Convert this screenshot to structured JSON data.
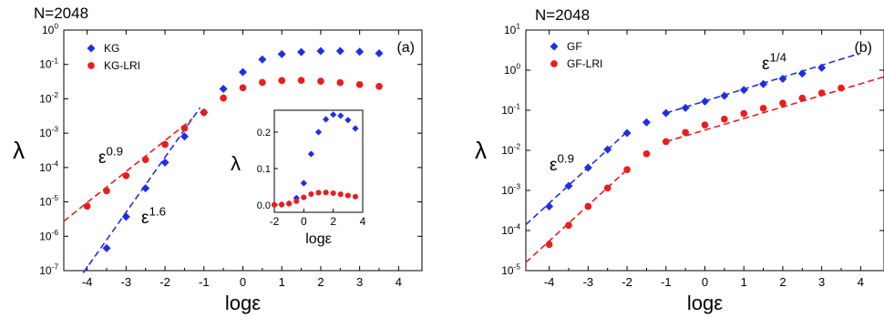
{
  "chart_data": [
    {
      "type": "scatter",
      "panel_label": "(a)",
      "header": "N=2048",
      "xlabel": "logε",
      "ylabel": "λ",
      "y_scale": "log",
      "xlim": [
        -4.6,
        4.6
      ],
      "ylim": [
        1e-07,
        1
      ],
      "x_ticks": [
        -4,
        -3,
        -2,
        -1,
        0,
        1,
        2,
        3,
        4
      ],
      "y_ticks": [
        {
          "v": 1e-07,
          "base": "10",
          "exp": "-7"
        },
        {
          "v": 1e-06,
          "base": "10",
          "exp": "-6"
        },
        {
          "v": 1e-05,
          "base": "10",
          "exp": "-5"
        },
        {
          "v": 0.0001,
          "base": "10",
          "exp": "-4"
        },
        {
          "v": 0.001,
          "base": "10",
          "exp": "-3"
        },
        {
          "v": 0.01,
          "base": "10",
          "exp": "-2"
        },
        {
          "v": 0.1,
          "base": "10",
          "exp": "-1"
        },
        {
          "v": 1,
          "base": "10",
          "exp": "0"
        }
      ],
      "legend": "top-left",
      "series": [
        {
          "name": "KG",
          "color": "#1f2ee6",
          "marker": "diamond",
          "x": [
            -3.5,
            -3,
            -2.5,
            -2,
            -1.5,
            -1,
            -0.5,
            0,
            0.5,
            1,
            1.5,
            2,
            2.5,
            3,
            3.5
          ],
          "y": [
            4.5e-07,
            3.7e-06,
            2.5e-05,
            0.00014,
            0.0008,
            0.004,
            0.0195,
            0.06,
            0.14,
            0.2,
            0.23,
            0.245,
            0.245,
            0.235,
            0.21
          ]
        },
        {
          "name": "KG-LRI",
          "color": "#e81e1e",
          "marker": "circle",
          "x": [
            -4,
            -3.5,
            -3,
            -2.5,
            -2,
            -1.5,
            -1,
            -0.5,
            0,
            0.5,
            1,
            1.5,
            2,
            2.5,
            3,
            3.5
          ],
          "y": [
            7.5e-06,
            2.1e-05,
            5.8e-05,
            0.00017,
            0.00047,
            0.0014,
            0.004,
            0.0105,
            0.021,
            0.03,
            0.034,
            0.0345,
            0.0325,
            0.0295,
            0.026,
            0.023
          ]
        }
      ],
      "fits": [
        {
          "label_base": "ε",
          "label_exp": "1.6",
          "color": "#1f2ee6",
          "x": [
            -4.1,
            -1.1
          ],
          "y": [
            8.6e-08,
            0.0055
          ]
        },
        {
          "label_base": "ε",
          "label_exp": "0.9",
          "color": "#e81e1e",
          "x": [
            -4.6,
            -1.3
          ],
          "y": [
            2.75e-06,
            0.0026
          ]
        }
      ],
      "inset": {
        "type": "scatter",
        "xlabel": "logε",
        "ylabel": "λ",
        "xlim": [
          -2,
          4
        ],
        "ylim": [
          -0.02,
          0.26
        ],
        "x_ticks": [
          -2,
          0,
          2,
          4
        ],
        "y_ticks": [
          {
            "v": 0.0,
            "label": "0.0"
          },
          {
            "v": 0.1,
            "label": "0.1"
          },
          {
            "v": 0.2,
            "label": "0.2"
          }
        ],
        "series": [
          {
            "name": "KG",
            "color": "#1f2ee6",
            "marker": "diamond",
            "x": [
              -1.5,
              -1,
              -0.5,
              0,
              0.5,
              1,
              1.5,
              2,
              2.5,
              3,
              3.5
            ],
            "y": [
              0.001,
              0.004,
              0.019,
              0.06,
              0.14,
              0.2,
              0.235,
              0.248,
              0.245,
              0.233,
              0.21
            ]
          },
          {
            "name": "KG-LRI",
            "color": "#e81e1e",
            "marker": "circle",
            "x": [
              -2,
              -1.5,
              -1,
              -0.5,
              0,
              0.5,
              1,
              1.5,
              2,
              2.5,
              3,
              3.5
            ],
            "y": [
              0.0005,
              0.0014,
              0.004,
              0.0105,
              0.021,
              0.03,
              0.034,
              0.0345,
              0.0325,
              0.0295,
              0.026,
              0.023
            ]
          }
        ]
      }
    },
    {
      "type": "scatter",
      "panel_label": "(b)",
      "header": "N=2048",
      "xlabel": "logε",
      "ylabel": "λ",
      "y_scale": "log",
      "xlim": [
        -4.6,
        4.6
      ],
      "ylim": [
        1e-05,
        10
      ],
      "x_ticks": [
        -4,
        -3,
        -2,
        -1,
        0,
        1,
        2,
        3,
        4
      ],
      "y_ticks": [
        {
          "v": 1e-05,
          "base": "10",
          "exp": "-5"
        },
        {
          "v": 0.0001,
          "base": "10",
          "exp": "-4"
        },
        {
          "v": 0.001,
          "base": "10",
          "exp": "-3"
        },
        {
          "v": 0.01,
          "base": "10",
          "exp": "-2"
        },
        {
          "v": 0.1,
          "base": "10",
          "exp": "-1"
        },
        {
          "v": 1,
          "base": "10",
          "exp": "0"
        },
        {
          "v": 10,
          "base": "10",
          "exp": "1"
        }
      ],
      "legend": "top-left",
      "series": [
        {
          "name": "GF",
          "color": "#1f2ee6",
          "marker": "diamond",
          "x": [
            -4,
            -3.5,
            -3,
            -2.5,
            -2,
            -1.5,
            -1,
            -0.5,
            0,
            0.5,
            1,
            1.5,
            2,
            2.5,
            3
          ],
          "y": [
            0.0004,
            0.0013,
            0.0037,
            0.0105,
            0.027,
            0.05,
            0.085,
            0.115,
            0.165,
            0.23,
            0.32,
            0.45,
            0.61,
            0.82,
            1.15
          ]
        },
        {
          "name": "GF-LRI",
          "color": "#e81e1e",
          "marker": "circle",
          "x": [
            -4,
            -3.5,
            -3,
            -2.5,
            -2,
            -1.5,
            -1,
            -0.5,
            0,
            0.5,
            1,
            1.5,
            2,
            2.5,
            3,
            3.5
          ],
          "y": [
            4.5e-05,
            0.000135,
            0.0004,
            0.00115,
            0.0033,
            0.0082,
            0.0165,
            0.028,
            0.043,
            0.06,
            0.083,
            0.112,
            0.15,
            0.2,
            0.27,
            0.36
          ]
        }
      ],
      "fits": [
        {
          "label_base": "ε",
          "label_exp": "0.9",
          "color": "#1f2ee6",
          "x": [
            -4.6,
            -2.0
          ],
          "y": [
            0.00014,
            0.029
          ]
        },
        {
          "label_base": "ε",
          "label_exp": "1/4",
          "color": "#1f2ee6",
          "x": [
            -1.0,
            4.0
          ],
          "y": [
            0.085,
            2.65
          ]
        },
        {
          "label_base": null,
          "label_exp": null,
          "color": "#e81e1e",
          "x": [
            -4.6,
            -2.0
          ],
          "y": [
            1.6e-05,
            0.0033
          ]
        },
        {
          "label_base": null,
          "label_exp": null,
          "color": "#e81e1e",
          "x": [
            -1.0,
            4.6
          ],
          "y": [
            0.0165,
            0.68
          ]
        }
      ]
    }
  ]
}
